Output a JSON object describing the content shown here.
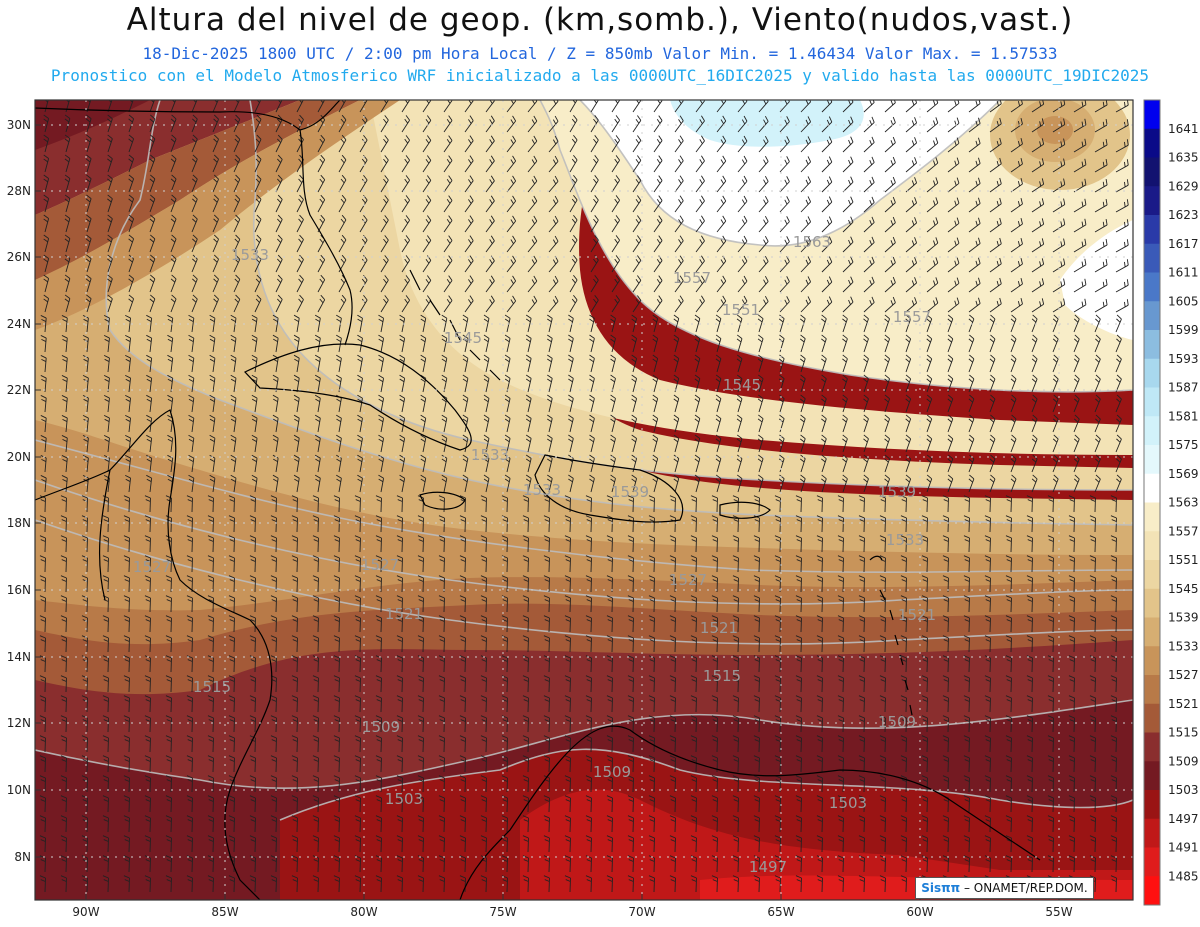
{
  "title": "Altura del nivel de geop. (km,somb.), Viento(nudos,vast.)",
  "subtitle_line1": "18-Dic-2025   1800 UTC / 2:00 pm Hora Local / Z = 850mb    Valor Min. = 1.46434  Valor Max. = 1.57533",
  "subtitle_line2": "Pronostico con el Modelo Atmosferico WRF inicializado a las 0000UTC_16DIC2025 y valido hasta las  0000UTC_19DIC2025",
  "credit": {
    "brand": "Sisππ",
    "rest": " – ONAMET/REP.DOM."
  },
  "axes": {
    "lat_labels": [
      "30N",
      "28N",
      "26N",
      "24N",
      "22N",
      "20N",
      "18N",
      "16N",
      "14N",
      "12N",
      "10N",
      "8N"
    ],
    "lon_labels": [
      "90W",
      "85W",
      "80W",
      "75W",
      "70W",
      "65W",
      "60W",
      "55W"
    ]
  },
  "colorbar": {
    "levels": [
      "1641",
      "1635",
      "1629",
      "1623",
      "1617",
      "1611",
      "1605",
      "1599",
      "1593",
      "1587",
      "1581",
      "1575",
      "1569",
      "1563",
      "1557",
      "1551",
      "1545",
      "1539",
      "1533",
      "1527",
      "1521",
      "1515",
      "1509",
      "1503",
      "1497",
      "1491",
      "1485"
    ],
    "colors": [
      "#0000ee",
      "#0a0a88",
      "#121270",
      "#1a1a88",
      "#2a3aa8",
      "#3a5ab8",
      "#4a78c8",
      "#6898d0",
      "#8cbde0",
      "#a8d8ee",
      "#bfe8f6",
      "#d2f2fa",
      "#e4f8fc",
      "#ffffff",
      "#f8edc8",
      "#f3e3b6",
      "#ecd6a2",
      "#e2c48a",
      "#d6ae72",
      "#c8945a",
      "#b87a48",
      "#a45a38",
      "#8a2e2e",
      "#741a22",
      "#9a1414",
      "#c01818",
      "#e01c1c",
      "#ff1010"
    ]
  },
  "contour_labels": [
    {
      "text": "1563"
    },
    {
      "text": "1557"
    },
    {
      "text": "1551"
    },
    {
      "text": "1557"
    },
    {
      "text": "1545"
    },
    {
      "text": "1545"
    },
    {
      "text": "1533"
    },
    {
      "text": "1539"
    },
    {
      "text": "1539"
    },
    {
      "text": "1533"
    },
    {
      "text": "1533"
    },
    {
      "text": "1527"
    },
    {
      "text": "1527"
    },
    {
      "text": "1527"
    },
    {
      "text": "1521"
    },
    {
      "text": "1521"
    },
    {
      "text": "1521"
    },
    {
      "text": "1515"
    },
    {
      "text": "1515"
    },
    {
      "text": "1509"
    },
    {
      "text": "1509"
    },
    {
      "text": "1509"
    },
    {
      "text": "1503"
    },
    {
      "text": "1503"
    },
    {
      "text": "1497"
    },
    {
      "text": "1533"
    }
  ]
}
